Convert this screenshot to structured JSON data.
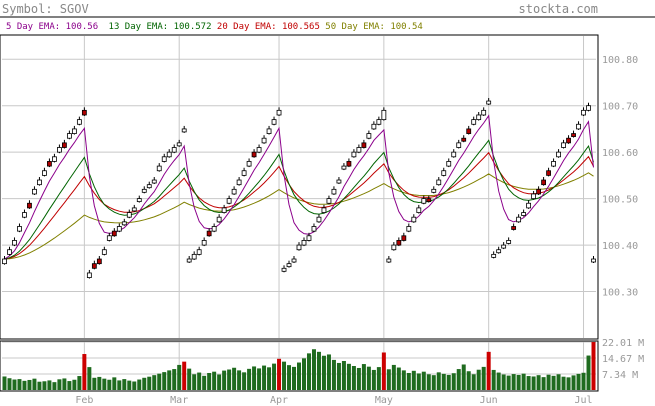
{
  "header": {
    "symbol_label": "Symbol: SGOV",
    "site": "stockta.com"
  },
  "legend": [
    {
      "text": "5 Day EMA: 100.56",
      "color": "#8b008b"
    },
    {
      "text": "13 Day EMA: 100.572",
      "color": "#006400"
    },
    {
      "text": "20 Day EMA: 100.565",
      "color": "#c00000"
    },
    {
      "text": "50 Day EMA: 100.54",
      "color": "#808000"
    }
  ],
  "colors": {
    "up_candle": "#ffffff",
    "down_candle": "#b00000",
    "volume_up": "#1f6b1f",
    "volume_down": "#cc0000",
    "grid": "#c8c8c8",
    "axis_text": "#999999"
  },
  "chart_data": {
    "type": "candlestick",
    "price_axis": {
      "ticks": [
        "100.30",
        "100.40",
        "100.50",
        "100.60",
        "100.70",
        "100.80"
      ],
      "range": [
        100.2,
        100.85
      ]
    },
    "volume_axis": {
      "ticks": [
        "7.34 M",
        "14.67 M",
        "22.01 M"
      ],
      "range": [
        0,
        22.01
      ]
    },
    "months": [
      {
        "label": "Feb",
        "index": 16
      },
      {
        "label": "Mar",
        "index": 35
      },
      {
        "label": "Apr",
        "index": 55
      },
      {
        "label": "May",
        "index": 76
      },
      {
        "label": "Jun",
        "index": 97
      },
      {
        "label": "Jul",
        "index": 116
      }
    ],
    "candles": [
      {
        "o": 100.36,
        "c": 100.37,
        "d": false
      },
      {
        "o": 100.38,
        "c": 100.39,
        "d": false
      },
      {
        "o": 100.4,
        "c": 100.41,
        "d": false
      },
      {
        "o": 100.43,
        "c": 100.44,
        "d": false
      },
      {
        "o": 100.46,
        "c": 100.47,
        "d": false
      },
      {
        "o": 100.48,
        "c": 100.49,
        "d": true
      },
      {
        "o": 100.51,
        "c": 100.52,
        "d": false
      },
      {
        "o": 100.53,
        "c": 100.54,
        "d": false
      },
      {
        "o": 100.55,
        "c": 100.56,
        "d": false
      },
      {
        "o": 100.57,
        "c": 100.58,
        "d": true
      },
      {
        "o": 100.58,
        "c": 100.59,
        "d": false
      },
      {
        "o": 100.6,
        "c": 100.61,
        "d": false
      },
      {
        "o": 100.61,
        "c": 100.62,
        "d": true
      },
      {
        "o": 100.63,
        "c": 100.64,
        "d": false
      },
      {
        "o": 100.64,
        "c": 100.65,
        "d": false
      },
      {
        "o": 100.66,
        "c": 100.67,
        "d": false
      },
      {
        "o": 100.69,
        "c": 100.68,
        "d": true
      },
      {
        "o": 100.33,
        "c": 100.34,
        "d": false
      },
      {
        "o": 100.35,
        "c": 100.36,
        "d": true
      },
      {
        "o": 100.36,
        "c": 100.37,
        "d": true
      },
      {
        "o": 100.38,
        "c": 100.39,
        "d": false
      },
      {
        "o": 100.41,
        "c": 100.42,
        "d": false
      },
      {
        "o": 100.42,
        "c": 100.43,
        "d": true
      },
      {
        "o": 100.43,
        "c": 100.44,
        "d": false
      },
      {
        "o": 100.45,
        "c": 100.45,
        "d": false
      },
      {
        "o": 100.46,
        "c": 100.47,
        "d": false
      },
      {
        "o": 100.48,
        "c": 100.48,
        "d": false
      },
      {
        "o": 100.5,
        "c": 100.5,
        "d": false
      },
      {
        "o": 100.52,
        "c": 100.52,
        "d": false
      },
      {
        "o": 100.53,
        "c": 100.53,
        "d": false
      },
      {
        "o": 100.54,
        "c": 100.54,
        "d": false
      },
      {
        "o": 100.56,
        "c": 100.57,
        "d": false
      },
      {
        "o": 100.58,
        "c": 100.59,
        "d": false
      },
      {
        "o": 100.59,
        "c": 100.6,
        "d": false
      },
      {
        "o": 100.6,
        "c": 100.61,
        "d": false
      },
      {
        "o": 100.62,
        "c": 100.62,
        "d": false
      },
      {
        "o": 100.65,
        "c": 100.65,
        "d": false
      },
      {
        "o": 100.37,
        "c": 100.37,
        "d": false
      },
      {
        "o": 100.37,
        "c": 100.38,
        "d": false
      },
      {
        "o": 100.38,
        "c": 100.39,
        "d": false
      },
      {
        "o": 100.4,
        "c": 100.41,
        "d": false
      },
      {
        "o": 100.42,
        "c": 100.43,
        "d": true
      },
      {
        "o": 100.43,
        "c": 100.44,
        "d": false
      },
      {
        "o": 100.45,
        "c": 100.46,
        "d": false
      },
      {
        "o": 100.47,
        "c": 100.48,
        "d": false
      },
      {
        "o": 100.49,
        "c": 100.5,
        "d": false
      },
      {
        "o": 100.51,
        "c": 100.52,
        "d": false
      },
      {
        "o": 100.53,
        "c": 100.54,
        "d": false
      },
      {
        "o": 100.55,
        "c": 100.56,
        "d": false
      },
      {
        "o": 100.57,
        "c": 100.58,
        "d": false
      },
      {
        "o": 100.59,
        "c": 100.6,
        "d": true
      },
      {
        "o": 100.6,
        "c": 100.61,
        "d": false
      },
      {
        "o": 100.62,
        "c": 100.63,
        "d": false
      },
      {
        "o": 100.64,
        "c": 100.65,
        "d": false
      },
      {
        "o": 100.66,
        "c": 100.67,
        "d": false
      },
      {
        "o": 100.68,
        "c": 100.69,
        "d": false
      },
      {
        "o": 100.35,
        "c": 100.35,
        "d": false
      },
      {
        "o": 100.36,
        "c": 100.36,
        "d": false
      },
      {
        "o": 100.37,
        "c": 100.37,
        "d": false
      },
      {
        "o": 100.39,
        "c": 100.4,
        "d": false
      },
      {
        "o": 100.4,
        "c": 100.41,
        "d": false
      },
      {
        "o": 100.41,
        "c": 100.42,
        "d": false
      },
      {
        "o": 100.43,
        "c": 100.44,
        "d": false
      },
      {
        "o": 100.45,
        "c": 100.46,
        "d": false
      },
      {
        "o": 100.47,
        "c": 100.48,
        "d": false
      },
      {
        "o": 100.49,
        "c": 100.5,
        "d": false
      },
      {
        "o": 100.51,
        "c": 100.52,
        "d": false
      },
      {
        "o": 100.54,
        "c": 100.54,
        "d": false
      },
      {
        "o": 100.57,
        "c": 100.57,
        "d": false
      },
      {
        "o": 100.57,
        "c": 100.58,
        "d": true
      },
      {
        "o": 100.59,
        "c": 100.6,
        "d": false
      },
      {
        "o": 100.6,
        "c": 100.61,
        "d": false
      },
      {
        "o": 100.61,
        "c": 100.62,
        "d": true
      },
      {
        "o": 100.63,
        "c": 100.64,
        "d": false
      },
      {
        "o": 100.65,
        "c": 100.66,
        "d": false
      },
      {
        "o": 100.67,
        "c": 100.66,
        "d": false
      },
      {
        "o": 100.69,
        "c": 100.67,
        "d": false
      },
      {
        "o": 100.37,
        "c": 100.37,
        "d": false
      },
      {
        "o": 100.39,
        "c": 100.4,
        "d": false
      },
      {
        "o": 100.4,
        "c": 100.41,
        "d": true
      },
      {
        "o": 100.41,
        "c": 100.42,
        "d": true
      },
      {
        "o": 100.43,
        "c": 100.44,
        "d": false
      },
      {
        "o": 100.45,
        "c": 100.46,
        "d": false
      },
      {
        "o": 100.47,
        "c": 100.48,
        "d": false
      },
      {
        "o": 100.49,
        "c": 100.5,
        "d": false
      },
      {
        "o": 100.5,
        "c": 100.5,
        "d": true
      },
      {
        "o": 100.52,
        "c": 100.52,
        "d": false
      },
      {
        "o": 100.53,
        "c": 100.54,
        "d": false
      },
      {
        "o": 100.55,
        "c": 100.56,
        "d": false
      },
      {
        "o": 100.57,
        "c": 100.58,
        "d": false
      },
      {
        "o": 100.59,
        "c": 100.6,
        "d": false
      },
      {
        "o": 100.61,
        "c": 100.62,
        "d": false
      },
      {
        "o": 100.63,
        "c": 100.63,
        "d": true
      },
      {
        "o": 100.64,
        "c": 100.65,
        "d": true
      },
      {
        "o": 100.66,
        "c": 100.67,
        "d": false
      },
      {
        "o": 100.67,
        "c": 100.68,
        "d": false
      },
      {
        "o": 100.68,
        "c": 100.69,
        "d": false
      },
      {
        "o": 100.71,
        "c": 100.71,
        "d": false
      },
      {
        "o": 100.38,
        "c": 100.38,
        "d": false
      },
      {
        "o": 100.39,
        "c": 100.39,
        "d": false
      },
      {
        "o": 100.4,
        "c": 100.4,
        "d": false
      },
      {
        "o": 100.41,
        "c": 100.41,
        "d": false
      },
      {
        "o": 100.44,
        "c": 100.44,
        "d": true
      },
      {
        "o": 100.45,
        "c": 100.46,
        "d": false
      },
      {
        "o": 100.47,
        "c": 100.47,
        "d": false
      },
      {
        "o": 100.48,
        "c": 100.49,
        "d": false
      },
      {
        "o": 100.5,
        "c": 100.51,
        "d": false
      },
      {
        "o": 100.51,
        "c": 100.52,
        "d": true
      },
      {
        "o": 100.53,
        "c": 100.54,
        "d": true
      },
      {
        "o": 100.55,
        "c": 100.56,
        "d": true
      },
      {
        "o": 100.57,
        "c": 100.58,
        "d": false
      },
      {
        "o": 100.59,
        "c": 100.6,
        "d": false
      },
      {
        "o": 100.61,
        "c": 100.62,
        "d": false
      },
      {
        "o": 100.62,
        "c": 100.63,
        "d": true
      },
      {
        "o": 100.64,
        "c": 100.64,
        "d": true
      },
      {
        "o": 100.65,
        "c": 100.66,
        "d": false
      },
      {
        "o": 100.68,
        "c": 100.69,
        "d": false
      },
      {
        "o": 100.69,
        "c": 100.7,
        "d": false
      },
      {
        "o": 100.37,
        "c": 100.37,
        "d": false
      }
    ],
    "volume": [
      {
        "v": 6.2,
        "r": false
      },
      {
        "v": 5.4,
        "r": false
      },
      {
        "v": 4.8,
        "r": false
      },
      {
        "v": 5.0,
        "r": false
      },
      {
        "v": 4.2,
        "r": false
      },
      {
        "v": 4.6,
        "r": false
      },
      {
        "v": 5.2,
        "r": false
      },
      {
        "v": 3.8,
        "r": false
      },
      {
        "v": 4.0,
        "r": false
      },
      {
        "v": 4.4,
        "r": false
      },
      {
        "v": 3.6,
        "r": false
      },
      {
        "v": 4.9,
        "r": false
      },
      {
        "v": 5.3,
        "r": false
      },
      {
        "v": 4.1,
        "r": false
      },
      {
        "v": 4.7,
        "r": false
      },
      {
        "v": 6.4,
        "r": false
      },
      {
        "v": 16.5,
        "r": true
      },
      {
        "v": 10.5,
        "r": false
      },
      {
        "v": 5.6,
        "r": false
      },
      {
        "v": 6.0,
        "r": false
      },
      {
        "v": 5.2,
        "r": false
      },
      {
        "v": 4.7,
        "r": false
      },
      {
        "v": 5.8,
        "r": false
      },
      {
        "v": 4.4,
        "r": false
      },
      {
        "v": 5.0,
        "r": false
      },
      {
        "v": 4.3,
        "r": false
      },
      {
        "v": 3.9,
        "r": false
      },
      {
        "v": 4.8,
        "r": false
      },
      {
        "v": 5.6,
        "r": false
      },
      {
        "v": 6.1,
        "r": false
      },
      {
        "v": 6.8,
        "r": false
      },
      {
        "v": 7.5,
        "r": false
      },
      {
        "v": 8.2,
        "r": false
      },
      {
        "v": 9.0,
        "r": false
      },
      {
        "v": 9.6,
        "r": false
      },
      {
        "v": 11.5,
        "r": false
      },
      {
        "v": 13.0,
        "r": true
      },
      {
        "v": 9.8,
        "r": false
      },
      {
        "v": 7.2,
        "r": false
      },
      {
        "v": 8.0,
        "r": false
      },
      {
        "v": 6.5,
        "r": false
      },
      {
        "v": 7.8,
        "r": false
      },
      {
        "v": 8.4,
        "r": false
      },
      {
        "v": 7.1,
        "r": false
      },
      {
        "v": 8.9,
        "r": false
      },
      {
        "v": 9.4,
        "r": false
      },
      {
        "v": 10.2,
        "r": false
      },
      {
        "v": 9.0,
        "r": false
      },
      {
        "v": 8.1,
        "r": false
      },
      {
        "v": 9.7,
        "r": false
      },
      {
        "v": 10.8,
        "r": false
      },
      {
        "v": 9.9,
        "r": false
      },
      {
        "v": 11.2,
        "r": false
      },
      {
        "v": 10.4,
        "r": false
      },
      {
        "v": 12.1,
        "r": false
      },
      {
        "v": 14.3,
        "r": true
      },
      {
        "v": 13.0,
        "r": false
      },
      {
        "v": 11.4,
        "r": false
      },
      {
        "v": 10.6,
        "r": false
      },
      {
        "v": 12.6,
        "r": false
      },
      {
        "v": 14.5,
        "r": false
      },
      {
        "v": 16.8,
        "r": false
      },
      {
        "v": 18.7,
        "r": false
      },
      {
        "v": 17.5,
        "r": false
      },
      {
        "v": 15.7,
        "r": false
      },
      {
        "v": 16.3,
        "r": false
      },
      {
        "v": 13.8,
        "r": false
      },
      {
        "v": 12.4,
        "r": false
      },
      {
        "v": 13.3,
        "r": false
      },
      {
        "v": 12.0,
        "r": false
      },
      {
        "v": 11.0,
        "r": false
      },
      {
        "v": 10.1,
        "r": false
      },
      {
        "v": 11.9,
        "r": false
      },
      {
        "v": 10.7,
        "r": false
      },
      {
        "v": 9.2,
        "r": false
      },
      {
        "v": 10.5,
        "r": false
      },
      {
        "v": 17.2,
        "r": true
      },
      {
        "v": 9.5,
        "r": false
      },
      {
        "v": 11.5,
        "r": false
      },
      {
        "v": 10.3,
        "r": false
      },
      {
        "v": 9.0,
        "r": false
      },
      {
        "v": 7.8,
        "r": false
      },
      {
        "v": 8.8,
        "r": false
      },
      {
        "v": 7.6,
        "r": false
      },
      {
        "v": 8.4,
        "r": false
      },
      {
        "v": 7.2,
        "r": false
      },
      {
        "v": 6.8,
        "r": false
      },
      {
        "v": 8.1,
        "r": false
      },
      {
        "v": 7.4,
        "r": false
      },
      {
        "v": 6.9,
        "r": false
      },
      {
        "v": 7.7,
        "r": false
      },
      {
        "v": 9.6,
        "r": false
      },
      {
        "v": 11.7,
        "r": false
      },
      {
        "v": 8.6,
        "r": false
      },
      {
        "v": 7.2,
        "r": false
      },
      {
        "v": 9.3,
        "r": false
      },
      {
        "v": 10.6,
        "r": false
      },
      {
        "v": 17.5,
        "r": true
      },
      {
        "v": 9.2,
        "r": false
      },
      {
        "v": 8.0,
        "r": false
      },
      {
        "v": 7.1,
        "r": false
      },
      {
        "v": 6.6,
        "r": false
      },
      {
        "v": 7.3,
        "r": false
      },
      {
        "v": 6.9,
        "r": false
      },
      {
        "v": 7.5,
        "r": false
      },
      {
        "v": 6.4,
        "r": false
      },
      {
        "v": 6.2,
        "r": false
      },
      {
        "v": 6.8,
        "r": false
      },
      {
        "v": 5.9,
        "r": false
      },
      {
        "v": 7.0,
        "r": false
      },
      {
        "v": 6.5,
        "r": false
      },
      {
        "v": 7.2,
        "r": false
      },
      {
        "v": 6.1,
        "r": false
      },
      {
        "v": 5.8,
        "r": false
      },
      {
        "v": 6.7,
        "r": false
      },
      {
        "v": 7.4,
        "r": false
      },
      {
        "v": 7.9,
        "r": false
      },
      {
        "v": 15.8,
        "r": false
      },
      {
        "v": 22.0,
        "r": true
      }
    ]
  }
}
